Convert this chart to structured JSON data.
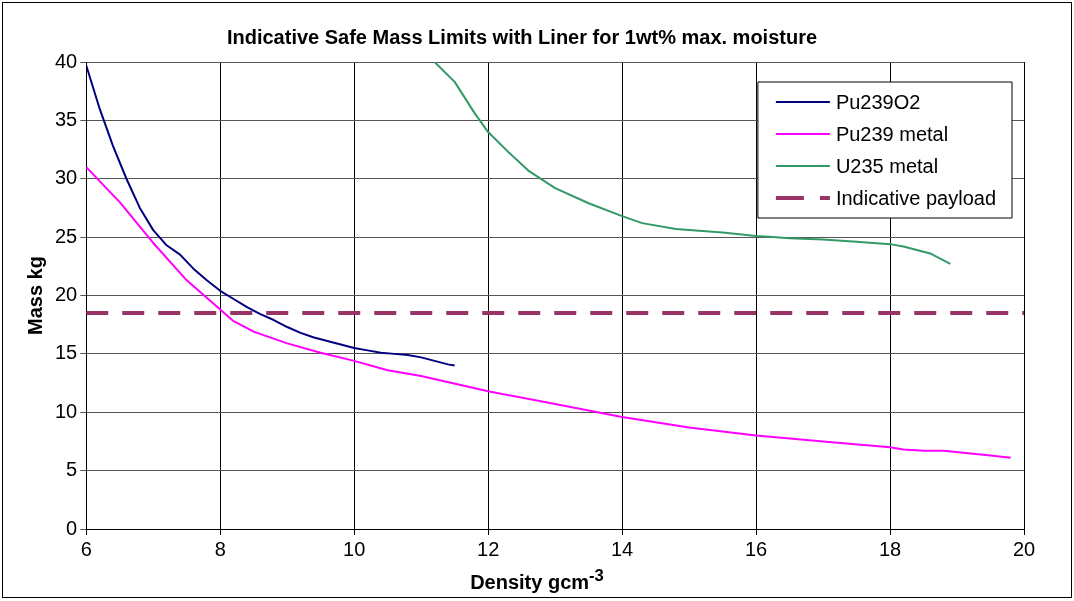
{
  "chart_data": {
    "type": "line",
    "title": "Indicative Safe Mass Limits with Liner for 1wt% max. moisture",
    "xlabel": "Density gcm$^{-3}$",
    "ylabel": "Mass kg",
    "xlim": [
      6,
      20
    ],
    "xticks": [
      6,
      8,
      10,
      12,
      14,
      16,
      18,
      20
    ],
    "ylim": [
      0,
      40
    ],
    "yticks": [
      0,
      5,
      10,
      15,
      20,
      25,
      30,
      35,
      40
    ],
    "grid": true,
    "legend": "top right",
    "marker": "none",
    "series": [
      {
        "name": "Pu239O2",
        "color": "#000080",
        "x": [
          6,
          6.2,
          6.4,
          6.6,
          6.8,
          7,
          7.2,
          7.4,
          7.6,
          7.8,
          8,
          8.2,
          8.4,
          8.6,
          8.8,
          9,
          9.2,
          9.4,
          9.6,
          9.8,
          10,
          10.2,
          10.4,
          10.6,
          10.8,
          11,
          11.2,
          11.4,
          11.5
        ],
        "values": [
          39.7,
          36,
          32.8,
          30,
          27.5,
          25.6,
          24.3,
          23.5,
          22.3,
          21.3,
          20.4,
          19.7,
          19,
          18.4,
          17.9,
          17.3,
          16.8,
          16.4,
          16.1,
          15.8,
          15.5,
          15.3,
          15.1,
          15,
          14.9,
          14.7,
          14.4,
          14.1,
          14
        ]
      },
      {
        "name": "Pu239 metal",
        "color": "#ff00ff",
        "x": [
          6,
          6.5,
          7,
          7.5,
          8,
          8.2,
          8.5,
          9,
          9.5,
          10,
          10.5,
          11,
          12,
          13,
          14,
          15,
          16,
          17,
          18,
          18.2,
          18.5,
          18.8,
          19.5,
          19.8
        ],
        "values": [
          31,
          28,
          24.5,
          21.3,
          18.8,
          17.8,
          16.9,
          15.9,
          15.1,
          14.4,
          13.6,
          13.1,
          11.8,
          10.7,
          9.6,
          8.7,
          8,
          7.5,
          7,
          6.8,
          6.7,
          6.7,
          6.3,
          6.1
        ]
      },
      {
        "name": "U235 metal",
        "color": "#339966",
        "x": [
          11.2,
          11.5,
          11.8,
          12,
          12.3,
          12.6,
          13,
          13.5,
          14,
          14.3,
          14.8,
          15.5,
          16,
          16.5,
          17,
          17.5,
          18,
          18.2,
          18.6,
          18.9
        ],
        "values": [
          40,
          38.3,
          35.6,
          34,
          32.3,
          30.7,
          29.2,
          27.9,
          26.8,
          26.2,
          25.7,
          25.4,
          25.1,
          24.9,
          24.8,
          24.6,
          24.4,
          24.2,
          23.6,
          22.7
        ]
      },
      {
        "name": "Indicative payload",
        "color": "#993366",
        "line_style": "dashed",
        "x": [
          6,
          20
        ],
        "values": [
          18.5,
          18.5
        ]
      }
    ]
  }
}
